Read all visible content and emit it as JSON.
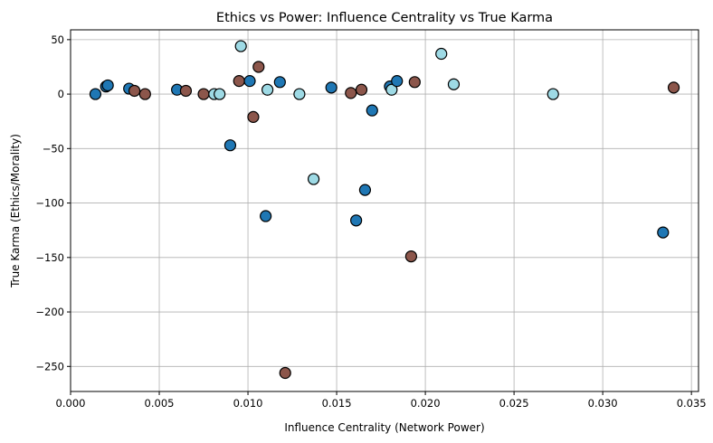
{
  "colors": {
    "grid": "#b0b0b0",
    "axis": "#000000",
    "cat_blue": "#1f77b4",
    "cat_brown": "#8c564b",
    "cat_cyan": "#9edae5",
    "marker_edge": "#000000"
  },
  "chart_data": {
    "type": "scatter",
    "title": "Ethics vs Power: Influence Centrality vs True Karma",
    "xlabel": "Influence Centrality (Network Power)",
    "ylabel": "True Karma (Ethics/Morality)",
    "xlim": [
      0.0,
      0.0354
    ],
    "ylim": [
      -273,
      59
    ],
    "xticks": [
      0.0,
      0.005,
      0.01,
      0.015,
      0.02,
      0.025,
      0.03,
      0.035
    ],
    "xtick_labels": [
      "0.000",
      "0.005",
      "0.010",
      "0.015",
      "0.020",
      "0.025",
      "0.030",
      "0.035"
    ],
    "yticks": [
      -250,
      -200,
      -150,
      -100,
      -50,
      0,
      50
    ],
    "ytick_labels": [
      "−250",
      "−200",
      "−150",
      "−100",
      "−50",
      "0",
      "50"
    ],
    "grid": true,
    "legend": "none",
    "points": [
      {
        "x": 0.0014,
        "y": 0,
        "c": "cat_blue"
      },
      {
        "x": 0.002,
        "y": 7,
        "c": "cat_blue"
      },
      {
        "x": 0.0021,
        "y": 8,
        "c": "cat_blue"
      },
      {
        "x": 0.0033,
        "y": 5,
        "c": "cat_blue"
      },
      {
        "x": 0.0036,
        "y": 3,
        "c": "cat_brown"
      },
      {
        "x": 0.0042,
        "y": 0,
        "c": "cat_brown"
      },
      {
        "x": 0.006,
        "y": 4,
        "c": "cat_blue"
      },
      {
        "x": 0.0065,
        "y": 3,
        "c": "cat_brown"
      },
      {
        "x": 0.0075,
        "y": 0,
        "c": "cat_brown"
      },
      {
        "x": 0.0081,
        "y": 0,
        "c": "cat_cyan"
      },
      {
        "x": 0.0084,
        "y": 0,
        "c": "cat_cyan"
      },
      {
        "x": 0.009,
        "y": -47,
        "c": "cat_blue"
      },
      {
        "x": 0.0095,
        "y": 12,
        "c": "cat_brown"
      },
      {
        "x": 0.0096,
        "y": 44,
        "c": "cat_cyan"
      },
      {
        "x": 0.0101,
        "y": 12,
        "c": "cat_blue"
      },
      {
        "x": 0.0103,
        "y": -21,
        "c": "cat_brown"
      },
      {
        "x": 0.0106,
        "y": 25,
        "c": "cat_brown"
      },
      {
        "x": 0.011,
        "y": -112,
        "c": "cat_blue"
      },
      {
        "x": 0.0111,
        "y": 4,
        "c": "cat_cyan"
      },
      {
        "x": 0.0118,
        "y": 11,
        "c": "cat_blue"
      },
      {
        "x": 0.0121,
        "y": -256,
        "c": "cat_brown"
      },
      {
        "x": 0.0129,
        "y": 0,
        "c": "cat_cyan"
      },
      {
        "x": 0.0137,
        "y": -78,
        "c": "cat_cyan"
      },
      {
        "x": 0.0147,
        "y": 6,
        "c": "cat_blue"
      },
      {
        "x": 0.0158,
        "y": 1,
        "c": "cat_brown"
      },
      {
        "x": 0.0161,
        "y": -116,
        "c": "cat_blue"
      },
      {
        "x": 0.0164,
        "y": 4,
        "c": "cat_brown"
      },
      {
        "x": 0.0166,
        "y": -88,
        "c": "cat_blue"
      },
      {
        "x": 0.017,
        "y": -15,
        "c": "cat_blue"
      },
      {
        "x": 0.018,
        "y": 7,
        "c": "cat_blue"
      },
      {
        "x": 0.0181,
        "y": 4,
        "c": "cat_cyan"
      },
      {
        "x": 0.0184,
        "y": 12,
        "c": "cat_blue"
      },
      {
        "x": 0.0192,
        "y": -149,
        "c": "cat_brown"
      },
      {
        "x": 0.0194,
        "y": 11,
        "c": "cat_brown"
      },
      {
        "x": 0.0209,
        "y": 37,
        "c": "cat_cyan"
      },
      {
        "x": 0.0216,
        "y": 9,
        "c": "cat_cyan"
      },
      {
        "x": 0.0272,
        "y": 0,
        "c": "cat_cyan"
      },
      {
        "x": 0.0334,
        "y": -127,
        "c": "cat_blue"
      },
      {
        "x": 0.034,
        "y": 6,
        "c": "cat_brown"
      }
    ]
  }
}
